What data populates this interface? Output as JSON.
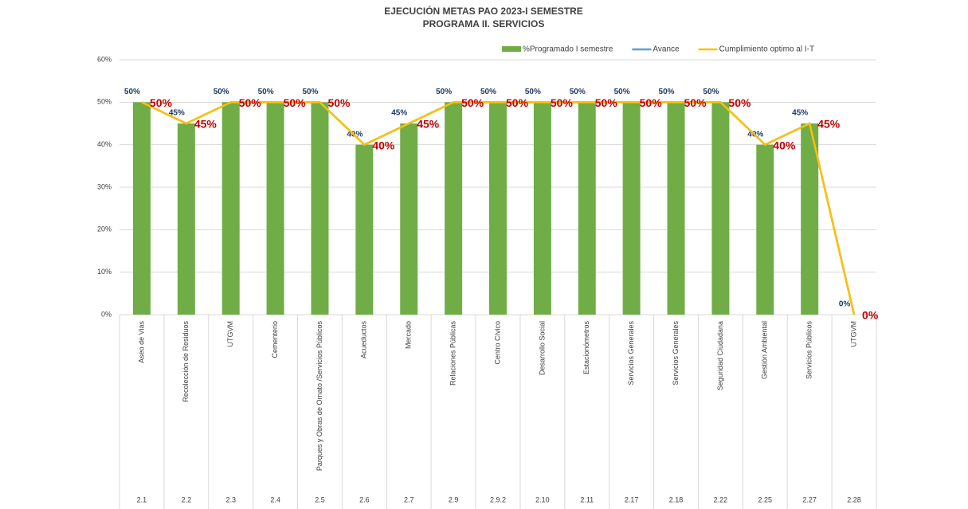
{
  "chart_data": {
    "type": "bar",
    "title": "EJECUCIÓN METAS PAO 2023-I SEMESTRE",
    "subtitle": "PROGRAMA II. SERVICIOS",
    "categories": [
      "Aseo de Vias",
      "Recolección de Residuos",
      "UTGVM",
      "Cementerio",
      "Parques y Obras de Ornato /Servicios Públicos",
      "Acueductos",
      "Mercado",
      "Relaciones Públicas",
      "Centro Cívico",
      "Desarrollo Social",
      "Estacionómetros",
      "Servicios Generales",
      "Servicios Generales",
      "Seguridad Ciudadana",
      "Gestión Ambiental",
      "Servicios Públicos",
      "UTGVM"
    ],
    "category_groups": [
      "2.1",
      "2.2",
      "2.3",
      "2.4",
      "2.5",
      "2.6",
      "2.7",
      "2.9",
      "2.9.2",
      "2.10",
      "2.11",
      "2.17",
      "2.18",
      "2.22",
      "2.25",
      "2.27",
      "2.28"
    ],
    "series": [
      {
        "name": "%Programado I semestre",
        "type": "bar",
        "color": "#70ad47",
        "values": [
          50,
          45,
          50,
          50,
          50,
          40,
          45,
          50,
          50,
          50,
          50,
          50,
          50,
          50,
          40,
          45,
          0
        ],
        "value_labels": [
          "50%",
          "45%",
          "50%",
          "50%",
          "50%",
          "40%",
          "45%",
          "50%",
          "50%",
          "50%",
          "50%",
          "50%",
          "50%",
          "50%",
          "40%",
          "45%",
          "0%"
        ]
      },
      {
        "name": "Avance",
        "type": "line",
        "color": "#5b9bd5",
        "values": [
          50,
          45,
          50,
          50,
          50,
          40,
          45,
          50,
          50,
          50,
          50,
          50,
          50,
          50,
          40,
          45,
          0
        ]
      },
      {
        "name": "Cumplimiento optimo  al I-T",
        "type": "line",
        "color": "#ffc000",
        "values": [
          50,
          45,
          50,
          50,
          50,
          40,
          45,
          50,
          50,
          50,
          50,
          50,
          50,
          50,
          40,
          45,
          0
        ],
        "value_labels": [
          "50%",
          "45%",
          "50%",
          "50%",
          "50%",
          "40%",
          "45%",
          "50%",
          "50%",
          "50%",
          "50%",
          "50%",
          "50%",
          "50%",
          "40%",
          "45%",
          "0%"
        ]
      }
    ],
    "ylim": [
      0,
      60
    ],
    "yticks": [
      {
        "value": 0,
        "label": "0%"
      },
      {
        "value": 10,
        "label": "10%"
      },
      {
        "value": 20,
        "label": "20%"
      },
      {
        "value": 30,
        "label": "30%"
      },
      {
        "value": 40,
        "label": "40%"
      },
      {
        "value": 50,
        "label": "50%"
      },
      {
        "value": 60,
        "label": "60%"
      }
    ],
    "grid": true,
    "legend": "top-right"
  }
}
